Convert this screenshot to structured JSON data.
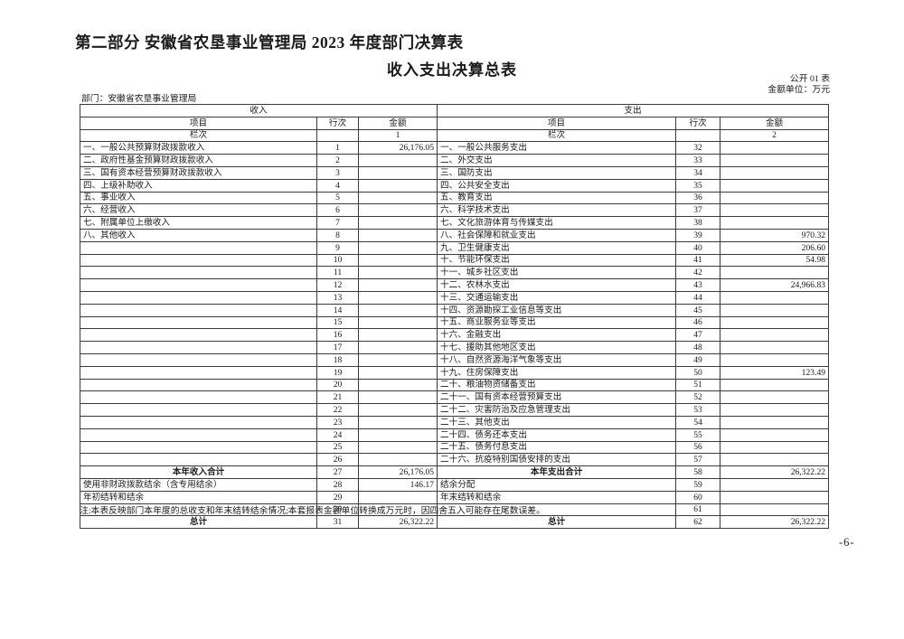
{
  "page": {
    "title": "第二部分  安徽省农垦事业管理局 2023 年度部门决算表",
    "subtitle": "收入支出决算总表",
    "table_code": "公开 01 表",
    "unit_label": "金额单位：万元",
    "department_label": "部门：安徽省农垦事业管理局",
    "note": "注:本表反映部门本年度的总收支和年末结转结余情况;本套报表金额单位转换成万元时，因四舍五入可能存在尾数误差。",
    "page_number": "-6-"
  },
  "table": {
    "income_section_header": "收入",
    "expense_section_header": "支出",
    "col_item": "项目",
    "col_line": "行次",
    "col_amount": "金额",
    "col_index_label": "栏次",
    "income_col_index": "1",
    "expense_col_index": "2",
    "income_rows": [
      {
        "label": "一、一般公共预算财政拨款收入",
        "line": "1",
        "amount": "26,176.05"
      },
      {
        "label": "二、政府性基金预算财政拨款收入",
        "line": "2",
        "amount": ""
      },
      {
        "label": "三、国有资本经营预算财政拨款收入",
        "line": "3",
        "amount": ""
      },
      {
        "label": "四、上级补助收入",
        "line": "4",
        "amount": ""
      },
      {
        "label": "五、事业收入",
        "line": "5",
        "amount": ""
      },
      {
        "label": "六、经营收入",
        "line": "6",
        "amount": ""
      },
      {
        "label": "七、附属单位上缴收入",
        "line": "7",
        "amount": ""
      },
      {
        "label": "八、其他收入",
        "line": "8",
        "amount": ""
      },
      {
        "label": "",
        "line": "9",
        "amount": ""
      },
      {
        "label": "",
        "line": "10",
        "amount": ""
      },
      {
        "label": "",
        "line": "11",
        "amount": ""
      },
      {
        "label": "",
        "line": "12",
        "amount": ""
      },
      {
        "label": "",
        "line": "13",
        "amount": ""
      },
      {
        "label": "",
        "line": "14",
        "amount": ""
      },
      {
        "label": "",
        "line": "15",
        "amount": ""
      },
      {
        "label": "",
        "line": "16",
        "amount": ""
      },
      {
        "label": "",
        "line": "17",
        "amount": ""
      },
      {
        "label": "",
        "line": "18",
        "amount": ""
      },
      {
        "label": "",
        "line": "19",
        "amount": ""
      },
      {
        "label": "",
        "line": "20",
        "amount": ""
      },
      {
        "label": "",
        "line": "21",
        "amount": ""
      },
      {
        "label": "",
        "line": "22",
        "amount": ""
      },
      {
        "label": "",
        "line": "23",
        "amount": ""
      },
      {
        "label": "",
        "line": "24",
        "amount": ""
      },
      {
        "label": "",
        "line": "25",
        "amount": ""
      },
      {
        "label": "",
        "line": "26",
        "amount": ""
      },
      {
        "label": "本年收入合计",
        "line": "27",
        "amount": "26,176.05",
        "total": true
      },
      {
        "label": "使用非财政拨款结余（含专用结余）",
        "line": "28",
        "amount": "146.17"
      },
      {
        "label": "年初结转和结余",
        "line": "29",
        "amount": ""
      },
      {
        "label": "",
        "line": "30",
        "amount": ""
      },
      {
        "label": "总计",
        "line": "31",
        "amount": "26,322.22",
        "total": true
      }
    ],
    "expense_rows": [
      {
        "label": "一、一般公共服务支出",
        "line": "32",
        "amount": ""
      },
      {
        "label": "二、外交支出",
        "line": "33",
        "amount": ""
      },
      {
        "label": "三、国防支出",
        "line": "34",
        "amount": ""
      },
      {
        "label": "四、公共安全支出",
        "line": "35",
        "amount": ""
      },
      {
        "label": "五、教育支出",
        "line": "36",
        "amount": ""
      },
      {
        "label": "六、科学技术支出",
        "line": "37",
        "amount": ""
      },
      {
        "label": "七、文化旅游体育与传媒支出",
        "line": "38",
        "amount": ""
      },
      {
        "label": "八、社会保障和就业支出",
        "line": "39",
        "amount": "970.32"
      },
      {
        "label": "九、卫生健康支出",
        "line": "40",
        "amount": "206.60"
      },
      {
        "label": "十、节能环保支出",
        "line": "41",
        "amount": "54.98"
      },
      {
        "label": "十一、城乡社区支出",
        "line": "42",
        "amount": ""
      },
      {
        "label": "十二、农林水支出",
        "line": "43",
        "amount": "24,966.83"
      },
      {
        "label": "十三、交通运输支出",
        "line": "44",
        "amount": ""
      },
      {
        "label": "十四、资源勘探工业信息等支出",
        "line": "45",
        "amount": ""
      },
      {
        "label": "十五、商业服务业等支出",
        "line": "46",
        "amount": ""
      },
      {
        "label": "十六、金融支出",
        "line": "47",
        "amount": ""
      },
      {
        "label": "十七、援助其他地区支出",
        "line": "48",
        "amount": ""
      },
      {
        "label": "十八、自然资源海洋气象等支出",
        "line": "49",
        "amount": ""
      },
      {
        "label": "十九、住房保障支出",
        "line": "50",
        "amount": "123.49"
      },
      {
        "label": "二十、粮油物资储备支出",
        "line": "51",
        "amount": ""
      },
      {
        "label": "二十一、国有资本经营预算支出",
        "line": "52",
        "amount": ""
      },
      {
        "label": "二十二、灾害防治及应急管理支出",
        "line": "53",
        "amount": ""
      },
      {
        "label": "二十三、其他支出",
        "line": "54",
        "amount": ""
      },
      {
        "label": "二十四、债务还本支出",
        "line": "55",
        "amount": ""
      },
      {
        "label": "二十五、债务付息支出",
        "line": "56",
        "amount": ""
      },
      {
        "label": "二十六、抗疫特别国债安排的支出",
        "line": "57",
        "amount": ""
      },
      {
        "label": "本年支出合计",
        "line": "58",
        "amount": "26,322.22",
        "total": true
      },
      {
        "label": "结余分配",
        "line": "59",
        "amount": ""
      },
      {
        "label": "年末结转和结余",
        "line": "60",
        "amount": ""
      },
      {
        "label": "",
        "line": "61",
        "amount": ""
      },
      {
        "label": "总计",
        "line": "62",
        "amount": "26,322.22",
        "total": true
      }
    ]
  }
}
